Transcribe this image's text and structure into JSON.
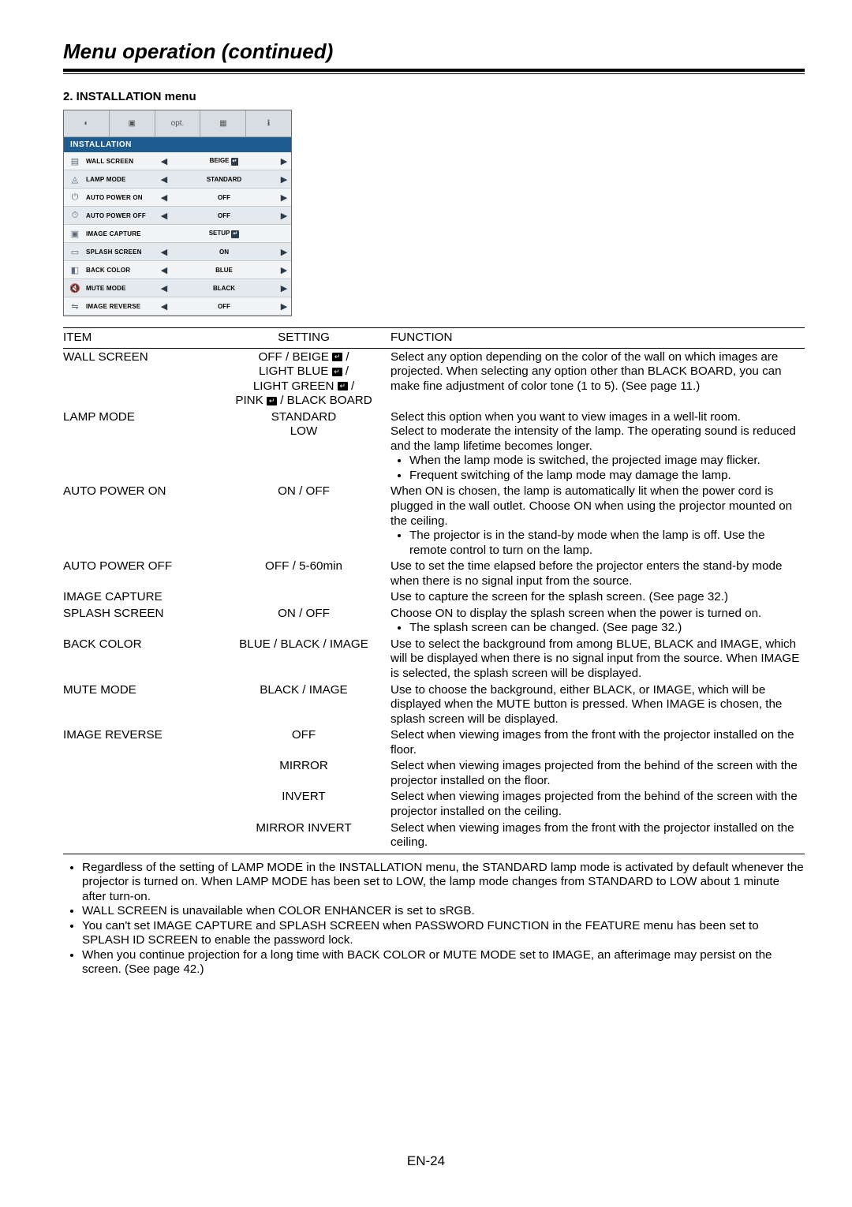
{
  "page_title": "Menu operation (continued)",
  "section_heading": "2. INSTALLATION menu",
  "osd": {
    "header": "INSTALLATION",
    "tabs": [
      "◐",
      "▣",
      "opt.",
      "▦",
      "ℹ"
    ],
    "rows": [
      {
        "icon": "▤",
        "label": "WALL SCREEN",
        "value": "BEIGE",
        "enter": true,
        "left": true,
        "right": true
      },
      {
        "icon": "◬",
        "label": "LAMP MODE",
        "value": "STANDARD",
        "enter": false,
        "left": true,
        "right": true
      },
      {
        "icon": "⏻",
        "label": "AUTO POWER ON",
        "value": "OFF",
        "enter": false,
        "left": true,
        "right": true
      },
      {
        "icon": "⏱",
        "label": "AUTO POWER OFF",
        "value": "OFF",
        "enter": false,
        "left": true,
        "right": true
      },
      {
        "icon": "▣",
        "label": "IMAGE CAPTURE",
        "value": "SETUP",
        "enter": true,
        "left": false,
        "right": false
      },
      {
        "icon": "▭",
        "label": "SPLASH SCREEN",
        "value": "ON",
        "enter": false,
        "left": true,
        "right": true
      },
      {
        "icon": "◧",
        "label": "BACK COLOR",
        "value": "BLUE",
        "enter": false,
        "left": true,
        "right": true
      },
      {
        "icon": "🔇",
        "label": "MUTE MODE",
        "value": "BLACK",
        "enter": false,
        "left": true,
        "right": true
      },
      {
        "icon": "⇋",
        "label": "IMAGE REVERSE",
        "value": "OFF",
        "enter": false,
        "left": true,
        "right": true
      }
    ]
  },
  "table": {
    "headers": {
      "item": "ITEM",
      "setting": "SETTING",
      "function": "FUNCTION"
    },
    "rows": [
      {
        "item": "WALL SCREEN",
        "setting_lines": [
          "OFF / BEIGE __E__ /",
          "LIGHT BLUE __E__ /",
          "LIGHT GREEN __E__ /",
          "PINK __E__ / BLACK BOARD"
        ],
        "function_lines": [
          "Select any option depending on the color of the wall on which images are projected. When selecting any option other than BLACK BOARD, you can make fine adjustment of color tone (1 to 5). (See page 11.)"
        ],
        "bullets": []
      },
      {
        "item": "LAMP MODE",
        "setting_lines": [
          "STANDARD",
          "LOW"
        ],
        "function_lines": [
          "Select this option when you want to view images in a well-lit room.",
          "Select to moderate the intensity of the lamp. The operating sound is reduced and the lamp lifetime becomes longer."
        ],
        "bullets": [
          "When the lamp mode is switched, the projected image may flicker.",
          "Frequent switching of the lamp mode may damage the lamp."
        ]
      },
      {
        "item": "AUTO POWER ON",
        "setting_lines": [
          "ON / OFF"
        ],
        "function_lines": [
          "When ON is chosen, the lamp is automatically lit when the power cord is plugged in the wall outlet. Choose ON when using the projector mounted on the ceiling."
        ],
        "bullets": [
          "The projector is in the stand-by mode when the lamp is off. Use the remote control to turn on the lamp."
        ]
      },
      {
        "item": "AUTO POWER OFF",
        "setting_lines": [
          "OFF / 5-60min"
        ],
        "function_lines": [
          "Use to set the time elapsed before the projector enters the stand-by mode when there is no signal input from the source."
        ],
        "bullets": []
      },
      {
        "item": "IMAGE CAPTURE",
        "setting_lines": [
          ""
        ],
        "function_lines": [
          "Use to capture the screen for the splash screen. (See page 32.)"
        ],
        "bullets": []
      },
      {
        "item": "SPLASH SCREEN",
        "setting_lines": [
          "ON / OFF"
        ],
        "function_lines": [
          "Choose ON to display the splash screen when the power is turned on."
        ],
        "bullets": [
          "The splash screen can be changed. (See page 32.)"
        ]
      },
      {
        "item": "BACK COLOR",
        "setting_lines": [
          "BLUE / BLACK / IMAGE"
        ],
        "function_lines": [
          "Use to select the background from among BLUE, BLACK and IMAGE, which will be displayed when there is no signal input from the source. When IMAGE is selected, the splash screen will be displayed."
        ],
        "bullets": []
      },
      {
        "item": "MUTE MODE",
        "setting_lines": [
          "BLACK / IMAGE"
        ],
        "function_lines": [
          "Use to choose the background, either BLACK, or IMAGE, which will be displayed when the MUTE button is pressed. When IMAGE is chosen, the splash screen will be displayed."
        ],
        "bullets": []
      },
      {
        "item": "IMAGE REVERSE",
        "setting_lines": [
          "OFF"
        ],
        "function_lines": [
          "Select when viewing images from the front with the projector installed on the floor."
        ],
        "bullets": []
      },
      {
        "item": "",
        "setting_lines": [
          "MIRROR"
        ],
        "function_lines": [
          "Select when viewing images projected from the behind of the screen with the projector installed on the floor."
        ],
        "bullets": []
      },
      {
        "item": "",
        "setting_lines": [
          "INVERT"
        ],
        "function_lines": [
          "Select when viewing images projected from the behind of the screen with the projector installed on the ceiling."
        ],
        "bullets": []
      },
      {
        "item": "",
        "setting_lines": [
          "MIRROR INVERT"
        ],
        "function_lines": [
          "Select when viewing images from the front with the projector installed on the ceiling."
        ],
        "bullets": []
      }
    ]
  },
  "notes": [
    "Regardless of the setting of LAMP MODE in the INSTALLATION menu, the STANDARD lamp mode is activated by default whenever the projector is turned on. When LAMP MODE has been set to LOW, the lamp mode changes from STANDARD to LOW about 1 minute after turn-on.",
    "WALL SCREEN is unavailable when COLOR ENHANCER is set to sRGB.",
    "You can't set IMAGE CAPTURE and SPLASH SCREEN when PASSWORD FUNCTION in the FEATURE menu has been set to SPLASH ID SCREEN to enable the password lock.",
    "When you continue projection for a long time with BACK COLOR or MUTE MODE set to IMAGE, an afterimage may persist on the screen. (See page 42.)"
  ],
  "page_number": "EN-24"
}
